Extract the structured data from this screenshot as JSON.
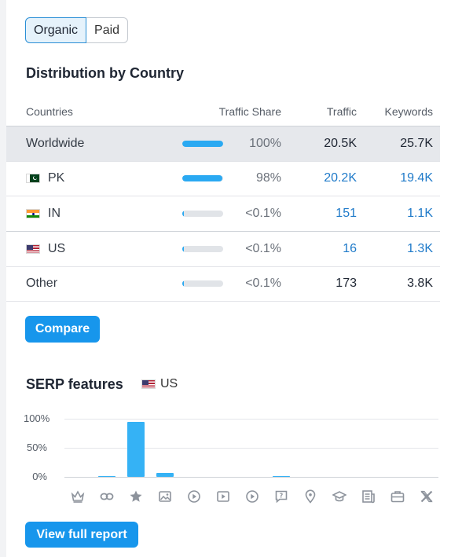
{
  "toggle": {
    "organic": "Organic",
    "paid": "Paid"
  },
  "distribution": {
    "title": "Distribution by Country",
    "headers": {
      "countries": "Countries",
      "share": "Traffic Share",
      "traffic": "Traffic",
      "keywords": "Keywords"
    },
    "rows": [
      {
        "country": "Worldwide",
        "flag": "",
        "share": "100%",
        "share_fraction": 1.0,
        "traffic": "20.5K",
        "keywords": "25.7K",
        "link": false
      },
      {
        "country": "PK",
        "flag": "pk-flag-icon",
        "share": "98%",
        "share_fraction": 0.98,
        "traffic": "20.2K",
        "keywords": "19.4K",
        "link": true
      },
      {
        "country": "IN",
        "flag": "in-flag-icon",
        "share": "<0.1%",
        "share_fraction": 0.001,
        "traffic": "151",
        "keywords": "1.1K",
        "link": true
      },
      {
        "country": "US",
        "flag": "us-flag-icon",
        "share": "<0.1%",
        "share_fraction": 0.001,
        "traffic": "16",
        "keywords": "1.3K",
        "link": true
      },
      {
        "country": "Other",
        "flag": "",
        "share": "<0.1%",
        "share_fraction": 0.001,
        "traffic": "173",
        "keywords": "3.8K",
        "link": false
      }
    ],
    "compare_label": "Compare"
  },
  "serp": {
    "title": "SERP features",
    "country": "US",
    "yticks": [
      "100%",
      "50%",
      "0%"
    ],
    "features": [
      {
        "icon": "crown-icon",
        "value": 0
      },
      {
        "icon": "link-icon",
        "value": 2
      },
      {
        "icon": "star-icon",
        "value": 95
      },
      {
        "icon": "image-icon",
        "value": 7
      },
      {
        "icon": "play-circle-icon",
        "value": 0
      },
      {
        "icon": "video-icon",
        "value": 0
      },
      {
        "icon": "play-circle-icon",
        "value": 0
      },
      {
        "icon": "question-icon",
        "value": 2
      },
      {
        "icon": "location-pin-icon",
        "value": 0
      },
      {
        "icon": "graduation-cap-icon",
        "value": 0
      },
      {
        "icon": "news-icon",
        "value": 0
      },
      {
        "icon": "briefcase-icon",
        "value": 0
      },
      {
        "icon": "x-icon",
        "value": 0
      }
    ],
    "report_label": "View full report"
  },
  "colors": {
    "accent": "#1796ec",
    "bar": "#35b2f5",
    "link": "#1f7ac9"
  }
}
